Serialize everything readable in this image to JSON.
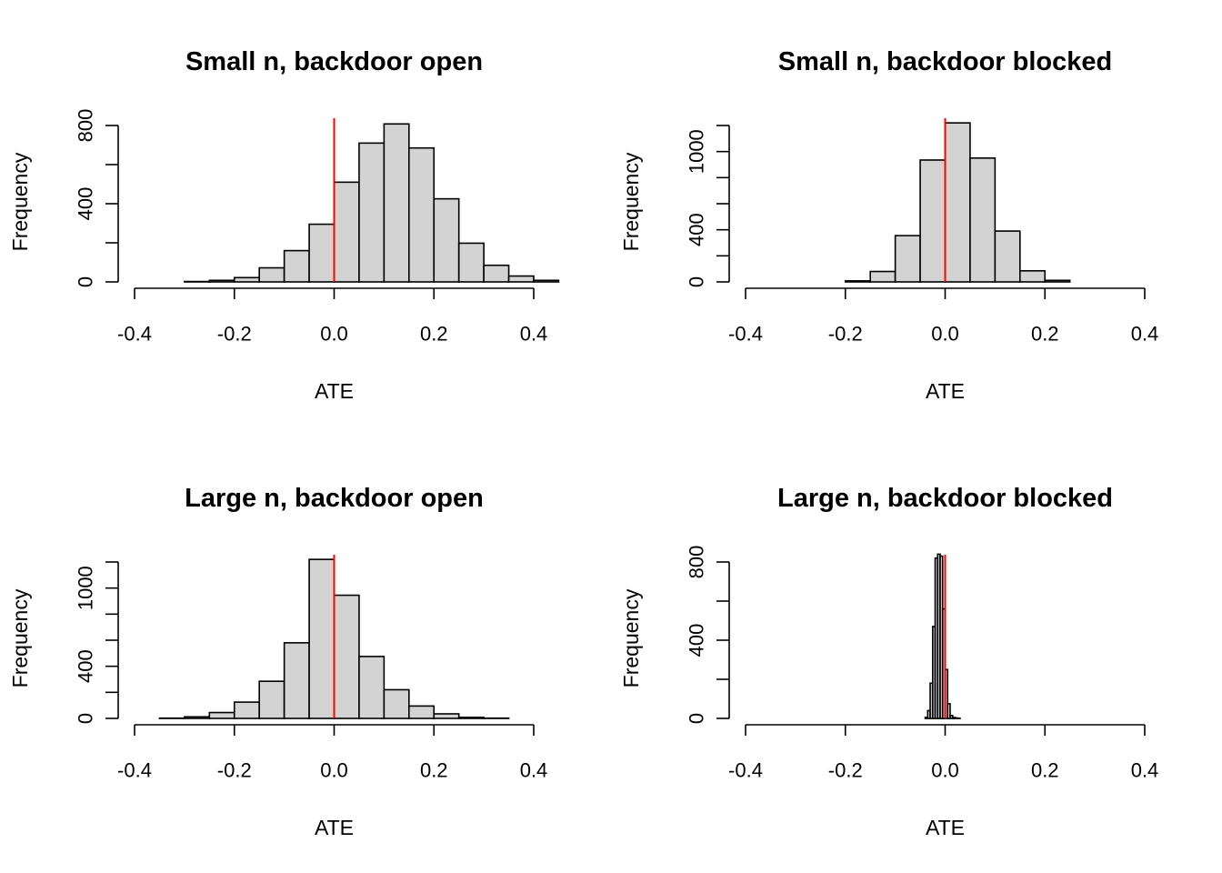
{
  "chart_data": [
    {
      "type": "bar",
      "title": "Small n, backdoor open",
      "xlabel": "ATE",
      "ylabel": "Frequency",
      "xlim": [
        -0.4,
        0.4
      ],
      "xticks": [
        "-0.4",
        "-0.2",
        "0.0",
        "0.2",
        "0.4"
      ],
      "ylim": [
        0,
        800
      ],
      "yticks": [
        "0",
        "400",
        "800"
      ],
      "ref_line_x": 0,
      "bin_start": -0.3,
      "bin_width": 0.05,
      "counts": [
        2,
        8,
        22,
        72,
        160,
        295,
        510,
        710,
        808,
        685,
        425,
        198,
        85,
        30,
        8
      ],
      "ref_line_color": "#ff0000",
      "bar_color": "#d3d3d3"
    },
    {
      "type": "bar",
      "title": "Small n, backdoor blocked",
      "xlabel": "ATE",
      "ylabel": "Frequency",
      "xlim": [
        -0.4,
        0.4
      ],
      "xticks": [
        "-0.4",
        "-0.2",
        "0.0",
        "0.2",
        "0.4"
      ],
      "ylim": [
        0,
        1200
      ],
      "yticks": [
        "0",
        "400",
        "1000"
      ],
      "ref_line_x": 0,
      "bin_start": -0.2,
      "bin_width": 0.05,
      "counts": [
        8,
        80,
        355,
        935,
        1220,
        950,
        390,
        85,
        12
      ],
      "ref_line_color": "#ff0000",
      "bar_color": "#d3d3d3"
    },
    {
      "type": "bar",
      "title": "Large n, backdoor open",
      "xlabel": "ATE",
      "ylabel": "Frequency",
      "xlim": [
        -0.4,
        0.4
      ],
      "xticks": [
        "-0.4",
        "-0.2",
        "0.0",
        "0.2",
        "0.4"
      ],
      "ylim": [
        0,
        1200
      ],
      "yticks": [
        "0",
        "400",
        "1000"
      ],
      "ref_line_x": 0,
      "bin_start": -0.35,
      "bin_width": 0.05,
      "counts": [
        2,
        12,
        45,
        125,
        285,
        580,
        1220,
        945,
        475,
        220,
        95,
        35,
        8,
        2
      ],
      "ref_line_color": "#ff0000",
      "bar_color": "#d3d3d3"
    },
    {
      "type": "bar",
      "title": "Large n, backdoor blocked",
      "xlabel": "ATE",
      "ylabel": "Frequency",
      "xlim": [
        -0.4,
        0.4
      ],
      "xticks": [
        "-0.4",
        "-0.2",
        "0.0",
        "0.2",
        "0.4"
      ],
      "ylim": [
        0,
        800
      ],
      "yticks": [
        "0",
        "400",
        "800"
      ],
      "ref_line_x": 0,
      "bin_start": -0.04,
      "bin_width": 0.005,
      "counts": [
        5,
        40,
        180,
        470,
        820,
        840,
        830,
        560,
        250,
        75,
        15,
        5,
        2,
        1
      ],
      "ref_line_color": "#ff0000",
      "bar_color": "#d3d3d3"
    }
  ]
}
